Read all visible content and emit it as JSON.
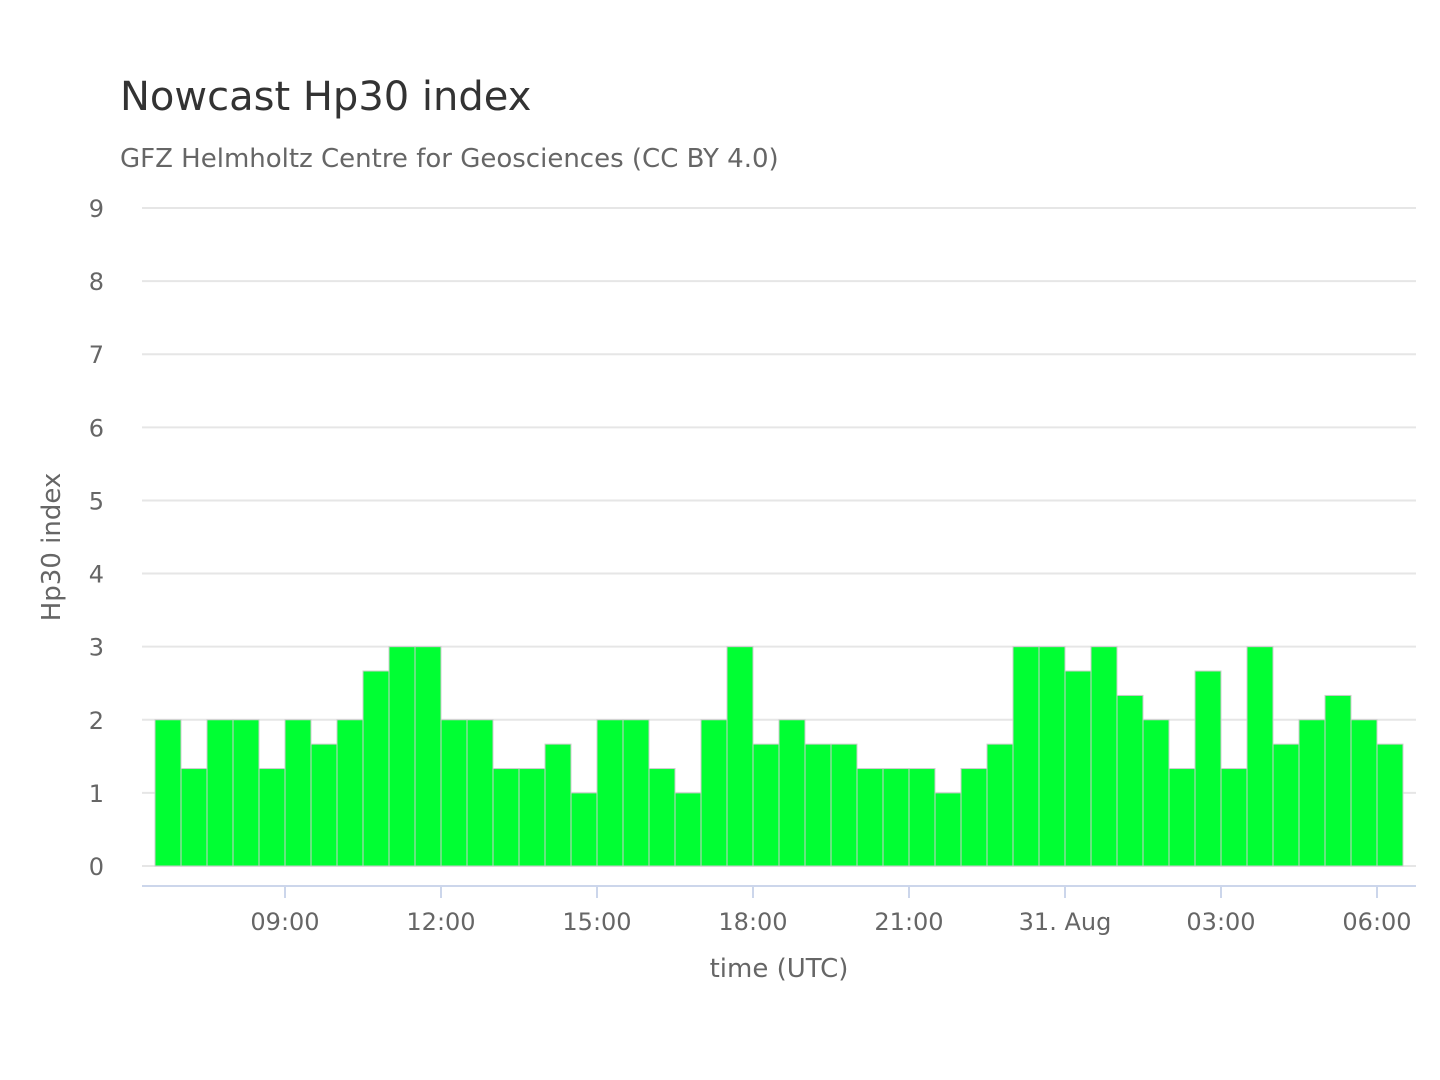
{
  "chart_data": {
    "type": "bar",
    "title": "Nowcast Hp30 index",
    "subtitle": "GFZ Helmholtz Centre for Geosciences (CC BY 4.0)",
    "xlabel": "time (UTC)",
    "ylabel": "Hp30 index",
    "ylim": [
      0,
      9
    ],
    "yticks": [
      "0",
      "1",
      "2",
      "3",
      "4",
      "5",
      "6",
      "7",
      "8",
      "9"
    ],
    "xticks": [
      {
        "label": "09:00",
        "hours": 9
      },
      {
        "label": "12:00",
        "hours": 12
      },
      {
        "label": "15:00",
        "hours": 15
      },
      {
        "label": "18:00",
        "hours": 18
      },
      {
        "label": "21:00",
        "hours": 21
      },
      {
        "label": "31. Aug",
        "hours": 24
      },
      {
        "label": "03:00",
        "hours": 27
      },
      {
        "label": "06:00",
        "hours": 30
      }
    ],
    "x_start_hours": 6.5,
    "interval_hours": 0.5,
    "values": [
      2,
      1.333,
      2,
      2,
      1.333,
      2,
      1.667,
      2,
      2.667,
      3,
      3,
      2,
      2,
      1.333,
      1.333,
      1.667,
      1,
      2,
      2,
      1.333,
      1,
      2,
      3,
      1.667,
      2,
      1.667,
      1.667,
      1.333,
      1.333,
      1.333,
      1,
      1.333,
      1.667,
      3,
      3,
      2.667,
      3,
      2.333,
      2,
      1.333,
      2.667,
      1.333,
      3,
      1.667,
      2,
      2.333,
      2,
      1.667
    ],
    "colors": {
      "bar": "#00ff33",
      "grid": "#e6e6e6",
      "axis": "#ccd6eb"
    },
    "grid": true,
    "legend": "none"
  }
}
